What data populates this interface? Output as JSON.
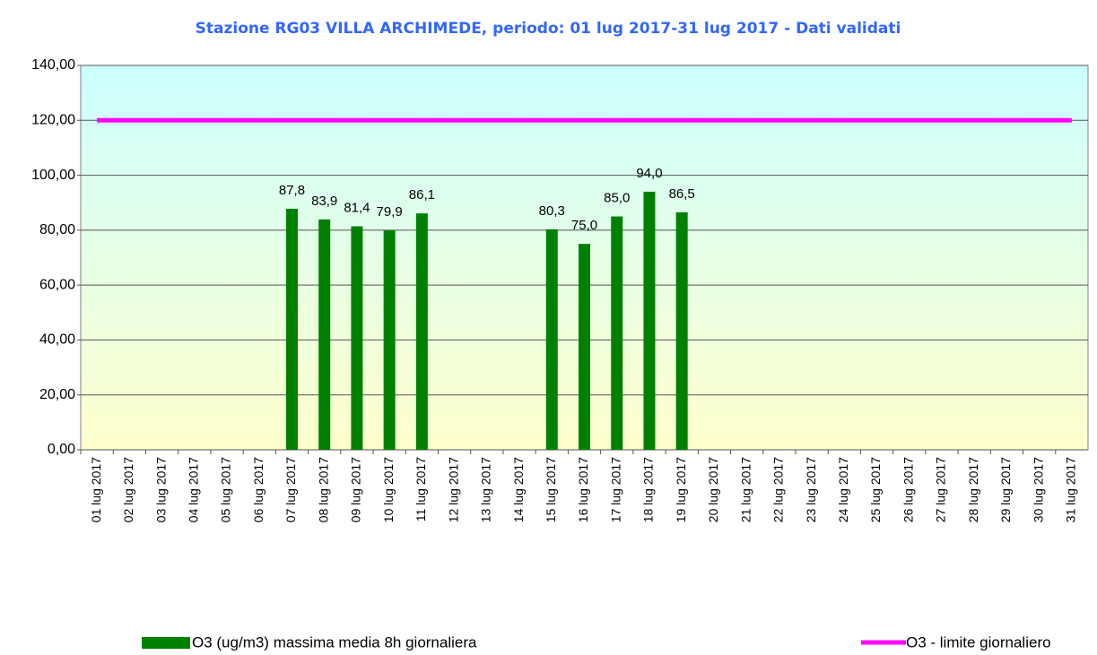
{
  "chart_data": {
    "type": "bar",
    "title": "Stazione RG03 VILLA ARCHIMEDE, periodo: 01 lug 2017-31 lug 2017 - Dati validati",
    "categories": [
      "01 lug 2017",
      "02 lug 2017",
      "03 lug 2017",
      "04 lug 2017",
      "05 lug 2017",
      "06 lug 2017",
      "07 lug 2017",
      "08 lug 2017",
      "09 lug 2017",
      "10 lug 2017",
      "11 lug 2017",
      "12 lug 2017",
      "13 lug 2017",
      "14 lug 2017",
      "15 lug 2017",
      "16 lug 2017",
      "17 lug 2017",
      "18 lug 2017",
      "19 lug 2017",
      "20 lug 2017",
      "21 lug 2017",
      "22 lug 2017",
      "23 lug 2017",
      "24 lug 2017",
      "25 lug 2017",
      "26 lug 2017",
      "27 lug 2017",
      "28 lug 2017",
      "29 lug 2017",
      "30 lug 2017",
      "31 lug 2017"
    ],
    "series": [
      {
        "name": "O3 (ug/m3) massima media 8h giornaliera",
        "type": "bar",
        "color": "#008000",
        "values": [
          null,
          null,
          null,
          null,
          null,
          null,
          87.8,
          83.9,
          81.4,
          79.9,
          86.1,
          null,
          null,
          null,
          80.3,
          75.0,
          85.0,
          94.0,
          86.5,
          null,
          null,
          null,
          null,
          null,
          null,
          null,
          null,
          null,
          null,
          null,
          null
        ],
        "value_labels": [
          null,
          null,
          null,
          null,
          null,
          null,
          "87,8",
          "83,9",
          "81,4",
          "79,9",
          "86,1",
          null,
          null,
          null,
          "80,3",
          "75,0",
          "85,0",
          "94,0",
          "86,5",
          null,
          null,
          null,
          null,
          null,
          null,
          null,
          null,
          null,
          null,
          null,
          null
        ]
      },
      {
        "name": "O3 - limite giornaliero",
        "type": "line",
        "color": "#ff00ff",
        "values": [
          120,
          120,
          120,
          120,
          120,
          120,
          120,
          120,
          120,
          120,
          120,
          120,
          120,
          120,
          120,
          120,
          120,
          120,
          120,
          120,
          120,
          120,
          120,
          120,
          120,
          120,
          120,
          120,
          120,
          120,
          120
        ]
      }
    ],
    "ylim": [
      0,
      140
    ],
    "yticks": [
      {
        "value": 0,
        "label": "0,00"
      },
      {
        "value": 20,
        "label": "20,00"
      },
      {
        "value": 40,
        "label": "40,00"
      },
      {
        "value": 60,
        "label": "60,00"
      },
      {
        "value": 80,
        "label": "80,00"
      },
      {
        "value": 100,
        "label": "100,00"
      },
      {
        "value": 120,
        "label": "120,00"
      },
      {
        "value": 140,
        "label": "140,00"
      }
    ],
    "grid": true
  }
}
